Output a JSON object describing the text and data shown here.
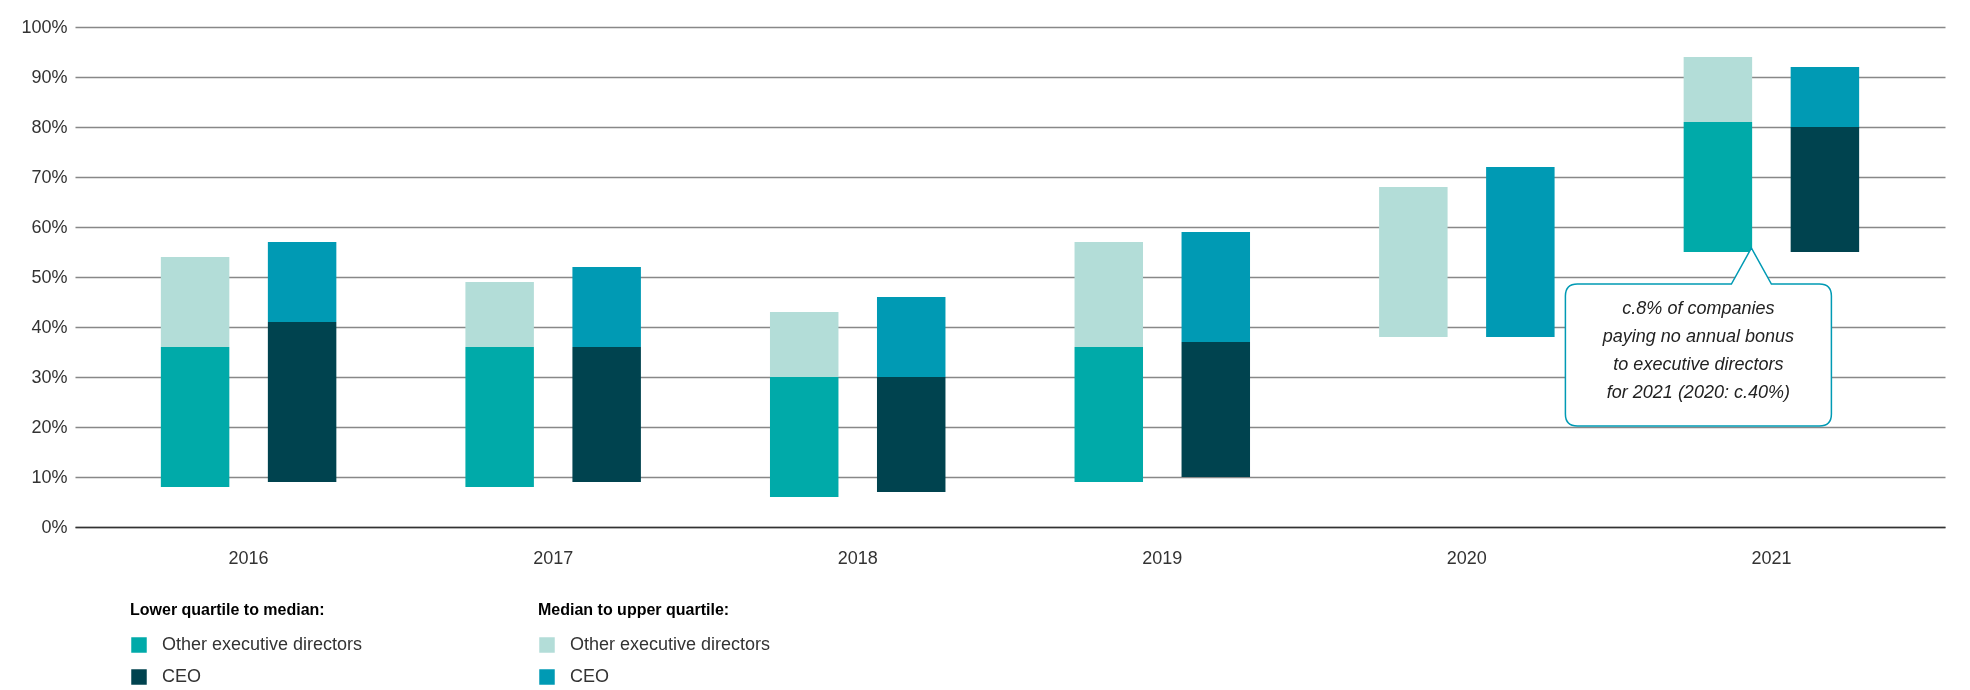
{
  "chart_data": {
    "type": "bar",
    "categories": [
      "2016",
      "2017",
      "2018",
      "2019",
      "2020",
      "2021"
    ],
    "legend_title": [
      "Lower quartile to median:",
      "Median to upper quartile:"
    ],
    "series": [
      {
        "name": "Other executive directors",
        "color": "#00aaa9",
        "base": [
          8,
          8,
          6,
          9,
          null,
          55
        ],
        "values": [
          28,
          28,
          24,
          27,
          null,
          26
        ]
      },
      {
        "name": "CEO",
        "color": "#00434f",
        "base": [
          9,
          9,
          7,
          10,
          null,
          55
        ],
        "values": [
          32,
          27,
          23,
          27,
          null,
          25
        ]
      },
      {
        "name": "Other executive directors",
        "color": "#b3ddd8",
        "base": [
          36,
          36,
          30,
          36,
          38,
          81
        ],
        "values": [
          18,
          13,
          13,
          21,
          30,
          13
        ]
      },
      {
        "name": "CEO",
        "color": "#009ab4",
        "base": [
          41,
          36,
          30,
          37,
          38,
          80
        ],
        "values": [
          16,
          16,
          16,
          22,
          34,
          12
        ]
      }
    ],
    "ylim": [
      0,
      100
    ],
    "yticks": [
      {
        "value": 0,
        "label": "0%"
      },
      {
        "value": 10,
        "label": "10%"
      },
      {
        "value": 20,
        "label": "20%"
      },
      {
        "value": 30,
        "label": "30%"
      },
      {
        "value": 40,
        "label": "40%"
      },
      {
        "value": 50,
        "label": "50%"
      },
      {
        "value": 60,
        "label": "60%"
      },
      {
        "value": 70,
        "label": "70%"
      },
      {
        "value": 80,
        "label": "80%"
      },
      {
        "value": 90,
        "label": "90%"
      },
      {
        "value": 100,
        "label": "100%"
      }
    ],
    "grid": true,
    "legend": "bottom",
    "annotations": [
      "c.8% of companies paying no annual bonus to executive directors for 2021 (2020: c.40%)"
    ]
  }
}
